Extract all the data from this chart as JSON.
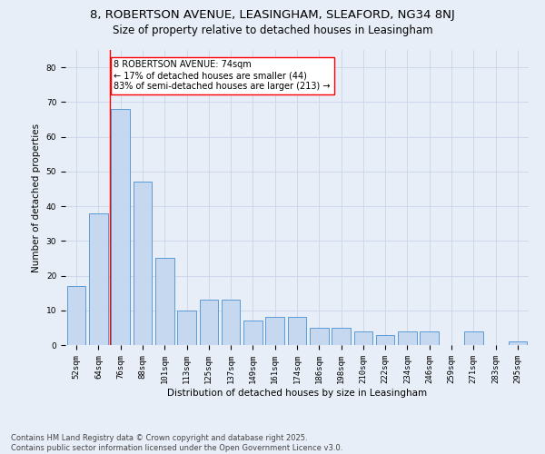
{
  "title_line1": "8, ROBERTSON AVENUE, LEASINGHAM, SLEAFORD, NG34 8NJ",
  "title_line2": "Size of property relative to detached houses in Leasingham",
  "xlabel": "Distribution of detached houses by size in Leasingham",
  "ylabel": "Number of detached properties",
  "categories": [
    "52sqm",
    "64sqm",
    "76sqm",
    "88sqm",
    "101sqm",
    "113sqm",
    "125sqm",
    "137sqm",
    "149sqm",
    "161sqm",
    "174sqm",
    "186sqm",
    "198sqm",
    "210sqm",
    "222sqm",
    "234sqm",
    "246sqm",
    "259sqm",
    "271sqm",
    "283sqm",
    "295sqm"
  ],
  "values": [
    17,
    38,
    68,
    47,
    25,
    10,
    13,
    13,
    7,
    8,
    8,
    5,
    5,
    4,
    3,
    4,
    4,
    0,
    4,
    0,
    1
  ],
  "bar_color": "#c5d8f0",
  "bar_edge_color": "#5b9bd5",
  "annotation_text_line1": "8 ROBERTSON AVENUE: 74sqm",
  "annotation_text_line2": "← 17% of detached houses are smaller (44)",
  "annotation_text_line3": "83% of semi-detached houses are larger (213) →",
  "annotation_box_color": "white",
  "annotation_box_edge_color": "red",
  "vline_color": "red",
  "vline_x": 1.5,
  "ylim": [
    0,
    85
  ],
  "yticks": [
    0,
    10,
    20,
    30,
    40,
    50,
    60,
    70,
    80
  ],
  "grid_color": "#c8d4e8",
  "background_color": "#e8eef8",
  "footer_line1": "Contains HM Land Registry data © Crown copyright and database right 2025.",
  "footer_line2": "Contains public sector information licensed under the Open Government Licence v3.0.",
  "title_fontsize": 9.5,
  "subtitle_fontsize": 8.5,
  "axis_label_fontsize": 7.5,
  "tick_fontsize": 6.5,
  "annotation_fontsize": 7,
  "footer_fontsize": 6
}
